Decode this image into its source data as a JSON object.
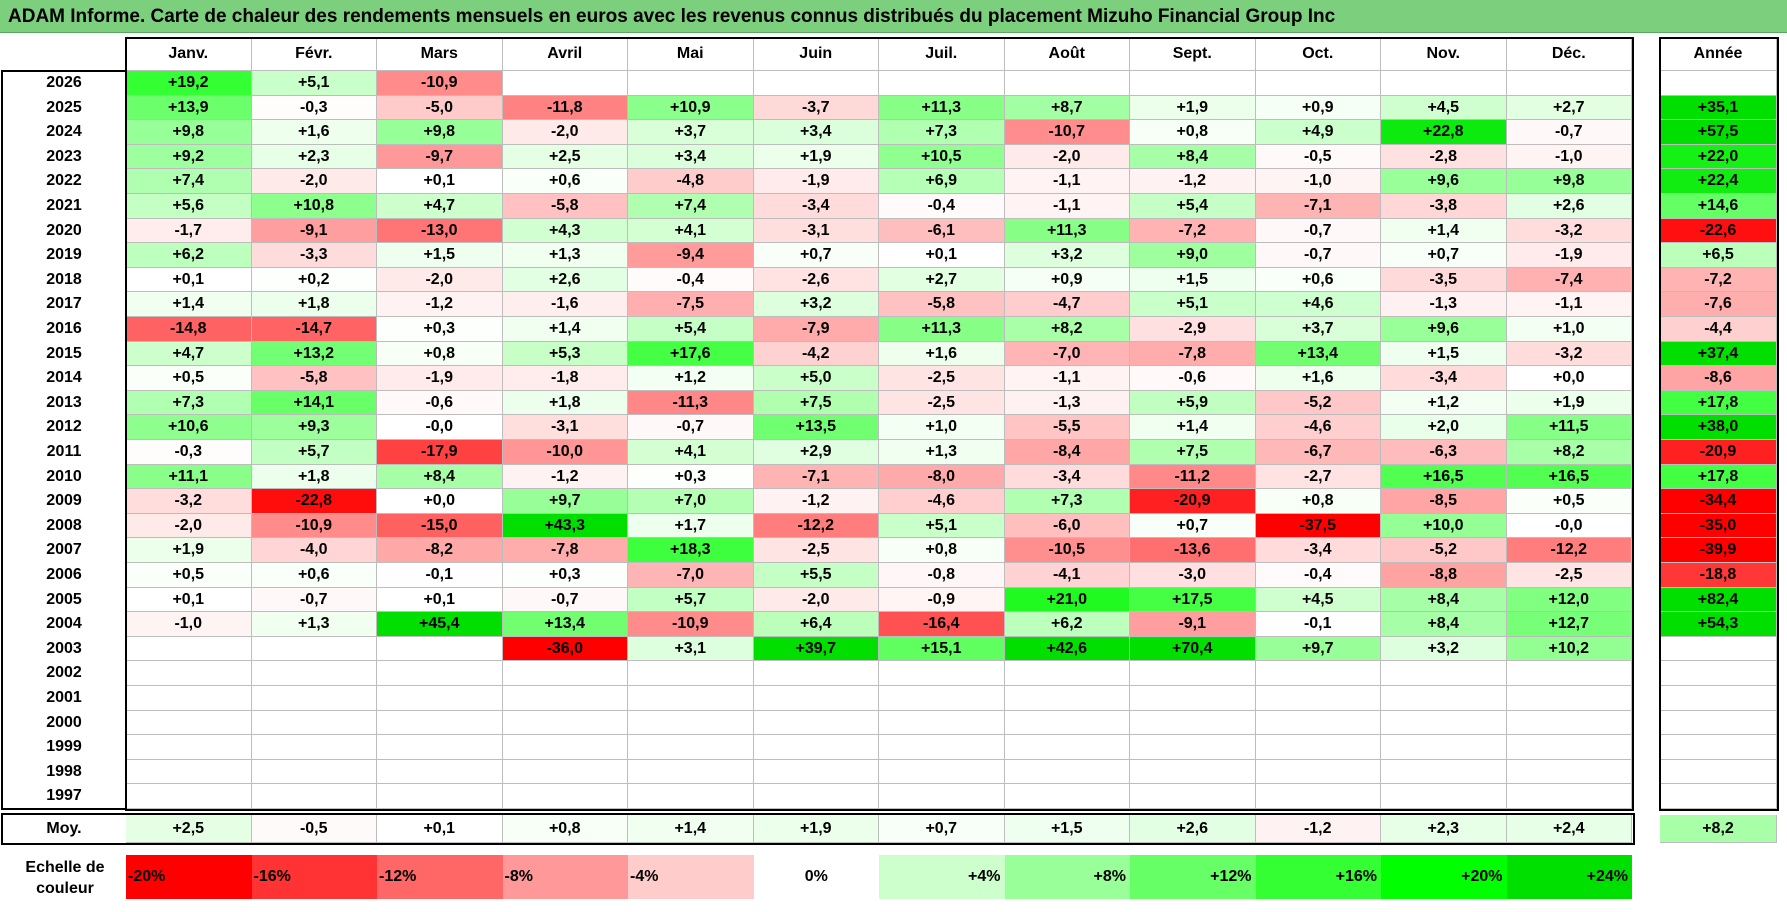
{
  "title": "ADAM Informe. Carte de chaleur des rendements mensuels en euros avec les revenus connus distribués du placement Mizuho Financial Group Inc",
  "chart_data": {
    "type": "heatmap",
    "months": [
      "Janv.",
      "Févr.",
      "Mars",
      "Avril",
      "Mai",
      "Juin",
      "Juil.",
      "Août",
      "Sept.",
      "Oct.",
      "Nov.",
      "Déc."
    ],
    "year_header": "Année",
    "years": [
      "2026",
      "2025",
      "2024",
      "2023",
      "2022",
      "2021",
      "2020",
      "2019",
      "2018",
      "2017",
      "2016",
      "2015",
      "2014",
      "2013",
      "2012",
      "2011",
      "2010",
      "2009",
      "2008",
      "2007",
      "2006",
      "2005",
      "2004",
      "2003",
      "2002",
      "2001",
      "2000",
      "1999",
      "1998",
      "1997"
    ],
    "rows": [
      [
        "+19,2",
        "+5,1",
        "-10,9",
        "",
        "",
        "",
        "",
        "",
        "",
        "",
        "",
        ""
      ],
      [
        "+13,9",
        "-0,3",
        "-5,0",
        "-11,8",
        "+10,9",
        "-3,7",
        "+11,3",
        "+8,7",
        "+1,9",
        "+0,9",
        "+4,5",
        "+2,7"
      ],
      [
        "+9,8",
        "+1,6",
        "+9,8",
        "-2,0",
        "+3,7",
        "+3,4",
        "+7,3",
        "-10,7",
        "+0,8",
        "+4,9",
        "+22,8",
        "-0,7"
      ],
      [
        "+9,2",
        "+2,3",
        "-9,7",
        "+2,5",
        "+3,4",
        "+1,9",
        "+10,5",
        "-2,0",
        "+8,4",
        "-0,5",
        "-2,8",
        "-1,0"
      ],
      [
        "+7,4",
        "-2,0",
        "+0,1",
        "+0,6",
        "-4,8",
        "-1,9",
        "+6,9",
        "-1,1",
        "-1,2",
        "-1,0",
        "+9,6",
        "+9,8"
      ],
      [
        "+5,6",
        "+10,8",
        "+4,7",
        "-5,8",
        "+7,4",
        "-3,4",
        "-0,4",
        "-1,1",
        "+5,4",
        "-7,1",
        "-3,8",
        "+2,6"
      ],
      [
        "-1,7",
        "-9,1",
        "-13,0",
        "+4,3",
        "+4,1",
        "-3,1",
        "-6,1",
        "+11,3",
        "-7,2",
        "-0,7",
        "+1,4",
        "-3,2"
      ],
      [
        "+6,2",
        "-3,3",
        "+1,5",
        "+1,3",
        "-9,4",
        "+0,7",
        "+0,1",
        "+3,2",
        "+9,0",
        "-0,7",
        "+0,7",
        "-1,9"
      ],
      [
        "+0,1",
        "+0,2",
        "-2,0",
        "+2,6",
        "-0,4",
        "-2,6",
        "+2,7",
        "+0,9",
        "+1,5",
        "+0,6",
        "-3,5",
        "-7,4"
      ],
      [
        "+1,4",
        "+1,8",
        "-1,2",
        "-1,6",
        "-7,5",
        "+3,2",
        "-5,8",
        "-4,7",
        "+5,1",
        "+4,6",
        "-1,3",
        "-1,1"
      ],
      [
        "-14,8",
        "-14,7",
        "+0,3",
        "+1,4",
        "+5,4",
        "-7,9",
        "+11,3",
        "+8,2",
        "-2,9",
        "+3,7",
        "+9,6",
        "+1,0"
      ],
      [
        "+4,7",
        "+13,2",
        "+0,8",
        "+5,3",
        "+17,6",
        "-4,2",
        "+1,6",
        "-7,0",
        "-7,8",
        "+13,4",
        "+1,5",
        "-3,2"
      ],
      [
        "+0,5",
        "-5,8",
        "-1,9",
        "-1,8",
        "+1,2",
        "+5,0",
        "-2,5",
        "-1,1",
        "-0,6",
        "+1,6",
        "-3,4",
        "+0,0"
      ],
      [
        "+7,3",
        "+14,1",
        "-0,6",
        "+1,8",
        "-11,3",
        "+7,5",
        "-2,5",
        "-1,3",
        "+5,9",
        "-5,2",
        "+1,2",
        "+1,9"
      ],
      [
        "+10,6",
        "+9,3",
        "-0,0",
        "-3,1",
        "-0,7",
        "+13,5",
        "+1,0",
        "-5,5",
        "+1,4",
        "-4,6",
        "+2,0",
        "+11,5"
      ],
      [
        "-0,3",
        "+5,7",
        "-17,9",
        "-10,0",
        "+4,1",
        "+2,9",
        "+1,3",
        "-8,4",
        "+7,5",
        "-6,7",
        "-6,3",
        "+8,2"
      ],
      [
        "+11,1",
        "+1,8",
        "+8,4",
        "-1,2",
        "+0,3",
        "-7,1",
        "-8,0",
        "-3,4",
        "-11,2",
        "-2,7",
        "+16,5",
        "+16,5"
      ],
      [
        "-3,2",
        "-22,8",
        "+0,0",
        "+9,7",
        "+7,0",
        "-1,2",
        "-4,6",
        "+7,3",
        "-20,9",
        "+0,8",
        "-8,5",
        "+0,5"
      ],
      [
        "-2,0",
        "-10,9",
        "-15,0",
        "+43,3",
        "+1,7",
        "-12,2",
        "+5,1",
        "-6,0",
        "+0,7",
        "-37,5",
        "+10,0",
        "-0,0"
      ],
      [
        "+1,9",
        "-4,0",
        "-8,2",
        "-7,8",
        "+18,3",
        "-2,5",
        "+0,8",
        "-10,5",
        "-13,6",
        "-3,4",
        "-5,2",
        "-12,2"
      ],
      [
        "+0,5",
        "+0,6",
        "-0,1",
        "+0,3",
        "-7,0",
        "+5,5",
        "-0,8",
        "-4,1",
        "-3,0",
        "-0,4",
        "-8,8",
        "-2,5"
      ],
      [
        "+0,1",
        "-0,7",
        "+0,1",
        "-0,7",
        "+5,7",
        "-2,0",
        "-0,9",
        "+21,0",
        "+17,5",
        "+4,5",
        "+8,4",
        "+12,0"
      ],
      [
        "-1,0",
        "+1,3",
        "+45,4",
        "+13,4",
        "-10,9",
        "+6,4",
        "-16,4",
        "+6,2",
        "-9,1",
        "-0,1",
        "+8,4",
        "+12,7"
      ],
      [
        "",
        "",
        "",
        "-36,0",
        "+3,1",
        "+39,7",
        "+15,1",
        "+42,6",
        "+70,4",
        "+9,7",
        "+3,2",
        "+10,2"
      ],
      [
        "",
        "",
        "",
        "",
        "",
        "",
        "",
        "",
        "",
        "",
        "",
        ""
      ],
      [
        "",
        "",
        "",
        "",
        "",
        "",
        "",
        "",
        "",
        "",
        "",
        ""
      ],
      [
        "",
        "",
        "",
        "",
        "",
        "",
        "",
        "",
        "",
        "",
        "",
        ""
      ],
      [
        "",
        "",
        "",
        "",
        "",
        "",
        "",
        "",
        "",
        "",
        "",
        ""
      ],
      [
        "",
        "",
        "",
        "",
        "",
        "",
        "",
        "",
        "",
        "",
        "",
        ""
      ],
      [
        "",
        "",
        "",
        "",
        "",
        "",
        "",
        "",
        "",
        "",
        "",
        ""
      ]
    ],
    "annual": [
      "",
      "+35,1",
      "+57,5",
      "+22,0",
      "+22,4",
      "+14,6",
      "-22,6",
      "+6,5",
      "-7,2",
      "-7,6",
      "-4,4",
      "+37,4",
      "-8,6",
      "+17,8",
      "+38,0",
      "-20,9",
      "+17,8",
      "-34,4",
      "-35,0",
      "-39,9",
      "-18,8",
      "+82,4",
      "+54,3",
      "",
      "",
      "",
      "",
      "",
      "",
      ""
    ],
    "average_label": "Moy.",
    "averages": [
      "+2,5",
      "-0,5",
      "+0,1",
      "+0,8",
      "+1,4",
      "+1,9",
      "+0,7",
      "+1,5",
      "+2,6",
      "-1,2",
      "+2,3",
      "+2,4"
    ],
    "average_annual": "+8,2",
    "scale_label": "Echelle de couleur",
    "scale": [
      {
        "label": "-20%",
        "value": -20,
        "color": "#ff0000"
      },
      {
        "label": "-16%",
        "value": -16,
        "color": "#ff3333"
      },
      {
        "label": "-12%",
        "value": -12,
        "color": "#ff6666"
      },
      {
        "label": "-8%",
        "value": -8,
        "color": "#ff9999"
      },
      {
        "label": "-4%",
        "value": -4,
        "color": "#ffcccc"
      },
      {
        "label": "0%",
        "value": 0,
        "color": "#ffffff"
      },
      {
        "label": "+4%",
        "value": 4,
        "color": "#ccffcc"
      },
      {
        "label": "+8%",
        "value": 8,
        "color": "#99ff99"
      },
      {
        "label": "+12%",
        "value": 12,
        "color": "#66ff66"
      },
      {
        "label": "+16%",
        "value": 16,
        "color": "#33ff33"
      },
      {
        "label": "+20%",
        "value": 20,
        "color": "#00ff00"
      },
      {
        "label": "+24%",
        "value": 24,
        "color": "#00e000"
      }
    ]
  }
}
